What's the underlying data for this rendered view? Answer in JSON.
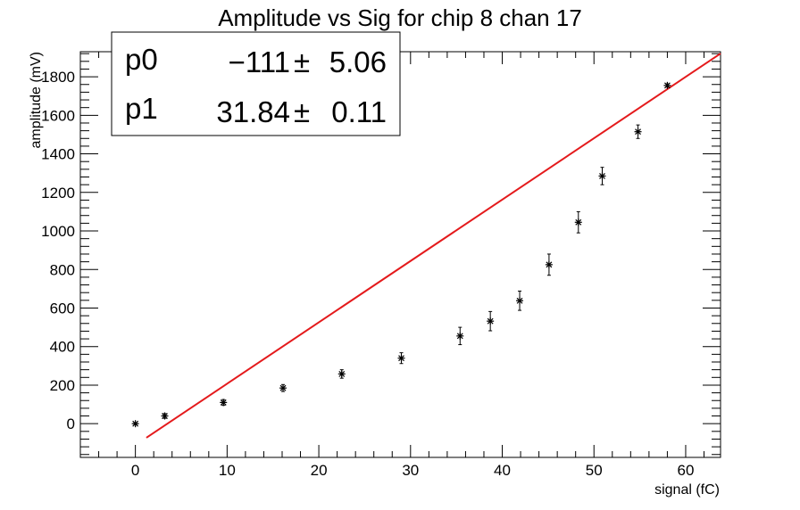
{
  "chart_data": {
    "type": "scatter",
    "title": "Amplitude vs Sig for chip 8 chan 17",
    "xlabel": "signal (fC)",
    "ylabel": "amplitude (mV)",
    "xlim": [
      -6,
      63.8
    ],
    "ylim": [
      -175,
      1930
    ],
    "xticks": [
      0,
      10,
      20,
      30,
      40,
      50,
      60
    ],
    "yticks": [
      0,
      200,
      400,
      600,
      800,
      1000,
      1200,
      1400,
      1600,
      1800
    ],
    "grid": false,
    "points": {
      "x": [
        0,
        3.2,
        9.6,
        16.1,
        22.5,
        29.0,
        35.4,
        38.7,
        41.9,
        45.1,
        48.3,
        50.9,
        54.8,
        58.0
      ],
      "y": [
        0,
        40,
        110,
        185,
        258,
        340,
        455,
        532,
        638,
        825,
        1045,
        1285,
        1515,
        1755
      ],
      "yerr": [
        5,
        12,
        15,
        18,
        22,
        28,
        45,
        50,
        50,
        55,
        55,
        45,
        35,
        8
      ]
    },
    "fit": {
      "color": "#e41a1c",
      "x_range": [
        1.2,
        63.8
      ],
      "p0": -111,
      "p1": 31.84
    },
    "stats_box": {
      "position": "top-left",
      "rows": [
        {
          "name": "p0",
          "value": "−111",
          "pm": "±",
          "error": "5.06"
        },
        {
          "name": "p1",
          "value": "31.84",
          "pm": "±",
          "error": "0.11"
        }
      ]
    }
  }
}
